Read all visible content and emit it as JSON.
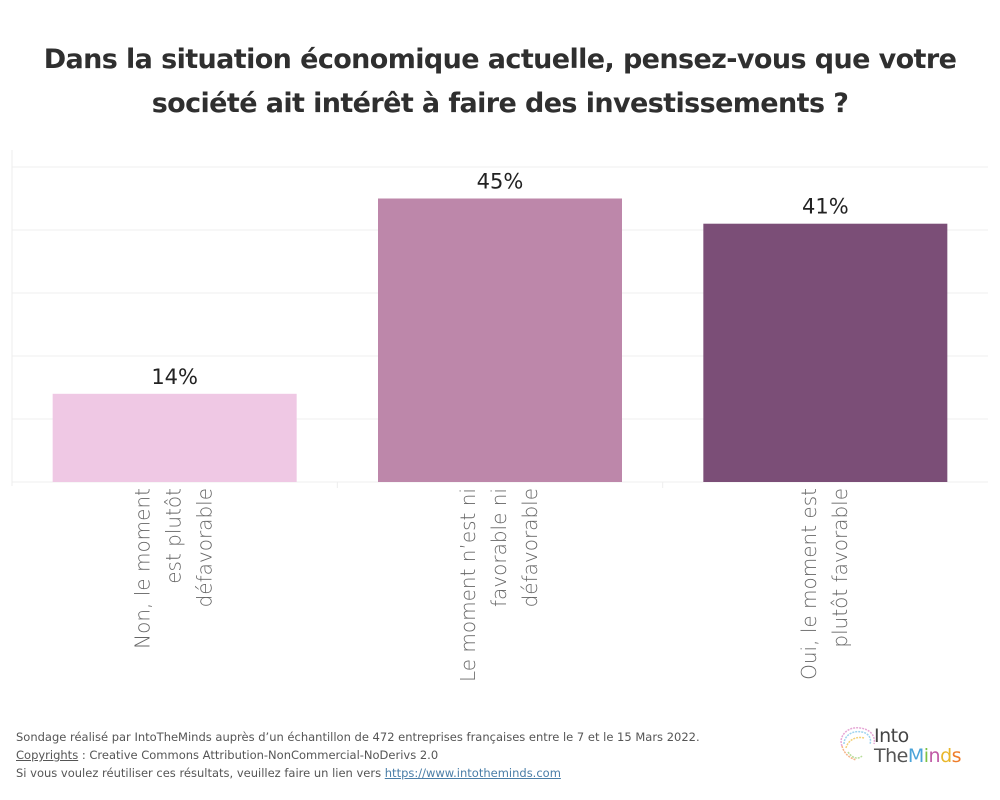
{
  "title": {
    "line1": "Dans la situation économique actuelle, pensez-vous que votre",
    "line2": "société ait intérêt à faire des investissements ?"
  },
  "chart_data": {
    "type": "bar",
    "title": "Dans la situation économique actuelle, pensez-vous que votre société ait intérêt à faire des investissements ?",
    "xlabel": "",
    "ylabel": "",
    "ylim": [
      0,
      50
    ],
    "grid": true,
    "gridline_step": 10,
    "categories": [
      [
        "Non, le moment",
        "est plutôt",
        "défavorable"
      ],
      [
        "Le moment n’est ni",
        "favorable ni",
        "défavorable"
      ],
      [
        "Oui, le moment est",
        "plutôt favorable"
      ]
    ],
    "category_names": [
      "Non, le moment est plutôt défavorable",
      "Le moment n’est ni favorable ni défavorable",
      "Oui, le moment est plutôt favorable"
    ],
    "values": [
      14,
      45,
      41
    ],
    "value_labels": [
      "14%",
      "45%",
      "41%"
    ],
    "colors": [
      "#efc8e4",
      "#bd87aa",
      "#7b4e77"
    ]
  },
  "footer": {
    "line1": "Sondage réalisé par IntoTheMinds auprès d’un échantillon de 472 entreprises françaises entre le 7 et le 15 Mars 2022.",
    "copyright_link": "Copyrights",
    "line2_rest": " : Creative Commons Attribution-NonCommercial-NoDerivs 2.0",
    "line3": "Si vous voulez réutiliser ces résultats, veuillez faire un lien vers ",
    "url": "https://www.intotheminds.com"
  },
  "logo": {
    "line1": "Into",
    "line2_the": "The",
    "minds_letters": [
      {
        "ch": "M",
        "color": "#4aa3d9"
      },
      {
        "ch": "i",
        "color": "#7cc242"
      },
      {
        "ch": "n",
        "color": "#c05aa6"
      },
      {
        "ch": "d",
        "color": "#e9b72a"
      },
      {
        "ch": "s",
        "color": "#ee7d2b"
      }
    ]
  }
}
